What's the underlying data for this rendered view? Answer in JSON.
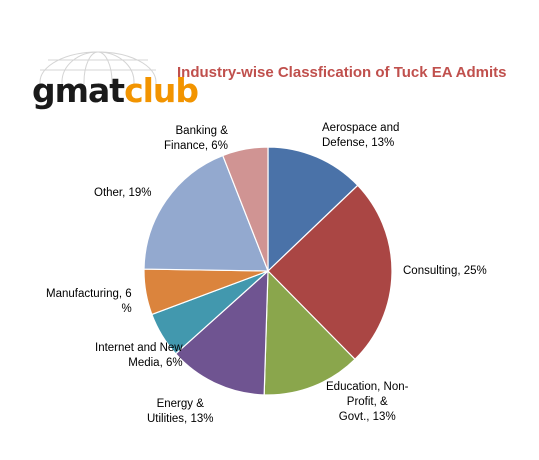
{
  "logo": {
    "text_part1": "gmat",
    "text_part2": "club"
  },
  "chart_data": {
    "type": "pie",
    "title": "Industry-wise Classfication  of Tuck EA Admits",
    "start_angle_deg": 0,
    "direction": "clockwise",
    "slices": [
      {
        "label": "Aerospace and Defense",
        "value": 13,
        "color": "#4a72a8",
        "label_lines": [
          "Aerospace and",
          "Defense, 13%"
        ]
      },
      {
        "label": "Consulting",
        "value": 25,
        "color": "#aa4644",
        "label_lines": [
          "Consulting, 25%"
        ]
      },
      {
        "label": "Education, Non-Profit, & Govt.",
        "value": 13,
        "color": "#8aa64c",
        "label_lines": [
          "Education, Non-",
          "Profit, &",
          "Govt., 13%"
        ]
      },
      {
        "label": "Energy & Utilities",
        "value": 13,
        "color": "#6f5491",
        "label_lines": [
          "Energy &",
          "Utilities, 13%"
        ]
      },
      {
        "label": "Internet and New Media",
        "value": 6,
        "color": "#4298ae",
        "label_lines": [
          "Internet and  New",
          "Media, 6%"
        ]
      },
      {
        "label": "Manufacturing",
        "value": 6,
        "color": "#db843d",
        "label_lines": [
          "Manufacturing, 6",
          "%"
        ]
      },
      {
        "label": "Other",
        "value": 19,
        "color": "#93a9cf",
        "label_lines": [
          "Other, 19%"
        ]
      },
      {
        "label": "Banking & Finance",
        "value": 6,
        "color": "#d09493",
        "label_lines": [
          "Banking &",
          "Finance, 6%"
        ]
      }
    ]
  }
}
